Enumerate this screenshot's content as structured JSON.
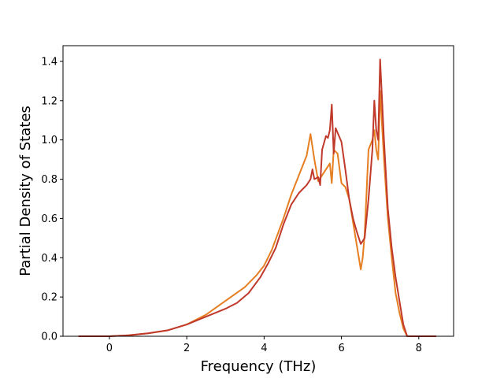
{
  "chart_data": {
    "type": "line",
    "title": "",
    "xlabel": "Frequency (THz)",
    "ylabel": "Partial Density of States",
    "xlim": [
      -1.2,
      8.9
    ],
    "ylim": [
      0.0,
      1.48
    ],
    "xticks": [
      0,
      2,
      4,
      6,
      8
    ],
    "xtick_labels": [
      "0",
      "2",
      "4",
      "6",
      "8"
    ],
    "yticks": [
      0.0,
      0.2,
      0.4,
      0.6,
      0.8,
      1.0,
      1.2,
      1.4
    ],
    "ytick_labels": [
      "0.0",
      "0.2",
      "0.4",
      "0.6",
      "0.8",
      "1.0",
      "1.2",
      "1.4"
    ],
    "grid": false,
    "series": [
      {
        "color": "#e67e22",
        "x": [
          -0.8,
          0.0,
          0.5,
          1.0,
          1.5,
          2.0,
          2.5,
          3.0,
          3.5,
          3.8,
          4.0,
          4.2,
          4.5,
          4.7,
          4.9,
          5.1,
          5.2,
          5.3,
          5.4,
          5.5,
          5.6,
          5.7,
          5.75,
          5.8,
          5.9,
          6.0,
          6.1,
          6.2,
          6.3,
          6.4,
          6.5,
          6.55,
          6.6,
          6.7,
          6.8,
          6.85,
          6.9,
          6.95,
          7.0,
          7.1,
          7.2,
          7.3,
          7.4,
          7.5,
          7.6,
          7.7,
          8.0,
          8.45
        ],
        "y": [
          0.0,
          0.0,
          0.005,
          0.015,
          0.03,
          0.06,
          0.11,
          0.18,
          0.25,
          0.31,
          0.36,
          0.44,
          0.6,
          0.72,
          0.82,
          0.92,
          1.03,
          0.9,
          0.79,
          0.82,
          0.85,
          0.88,
          0.78,
          0.95,
          0.93,
          0.78,
          0.76,
          0.7,
          0.58,
          0.46,
          0.34,
          0.4,
          0.52,
          0.95,
          1.0,
          1.05,
          0.95,
          0.9,
          1.25,
          0.9,
          0.6,
          0.4,
          0.22,
          0.12,
          0.04,
          0.0,
          0.0,
          0.0
        ]
      },
      {
        "color": "#c0392b",
        "x": [
          -0.8,
          0.0,
          0.5,
          1.0,
          1.5,
          2.0,
          2.5,
          3.0,
          3.3,
          3.6,
          3.9,
          4.1,
          4.3,
          4.5,
          4.7,
          4.9,
          5.0,
          5.1,
          5.2,
          5.25,
          5.3,
          5.4,
          5.45,
          5.5,
          5.6,
          5.65,
          5.7,
          5.75,
          5.8,
          5.85,
          6.0,
          6.1,
          6.2,
          6.3,
          6.4,
          6.5,
          6.6,
          6.7,
          6.8,
          6.85,
          6.9,
          6.95,
          7.0,
          7.1,
          7.2,
          7.3,
          7.4,
          7.5,
          7.6,
          7.7,
          8.0,
          8.45
        ],
        "y": [
          0.0,
          0.0,
          0.005,
          0.015,
          0.03,
          0.06,
          0.1,
          0.14,
          0.17,
          0.22,
          0.3,
          0.37,
          0.45,
          0.57,
          0.67,
          0.73,
          0.75,
          0.77,
          0.8,
          0.85,
          0.8,
          0.81,
          0.77,
          0.95,
          1.02,
          1.01,
          1.05,
          1.18,
          0.93,
          1.06,
          0.99,
          0.85,
          0.7,
          0.6,
          0.53,
          0.47,
          0.5,
          0.7,
          0.95,
          1.2,
          1.05,
          1.0,
          1.41,
          1.0,
          0.65,
          0.45,
          0.3,
          0.18,
          0.06,
          0.0,
          0.0,
          0.0
        ]
      }
    ]
  }
}
